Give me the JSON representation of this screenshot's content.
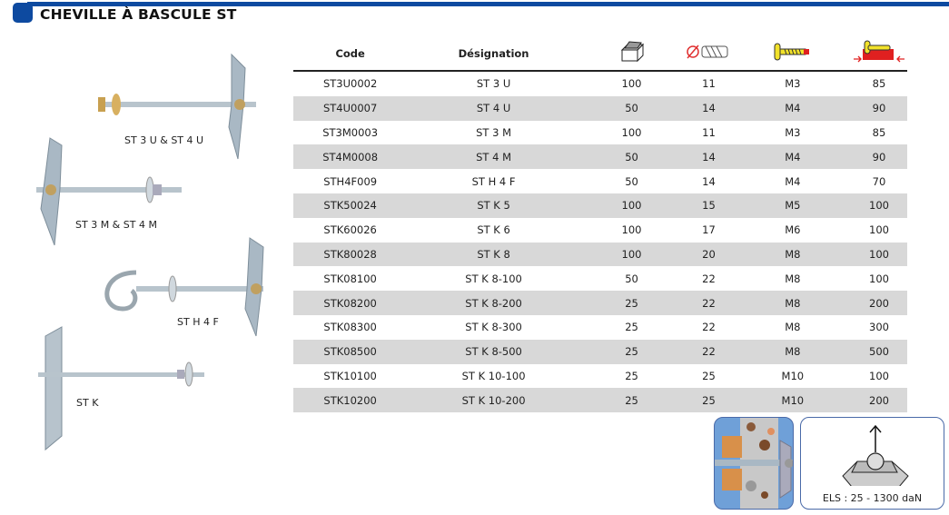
{
  "header": {
    "title": "CHEVILLE À BASCULE ST",
    "accent": "#0d4aa0"
  },
  "table": {
    "columns": [
      {
        "label": "Code"
      },
      {
        "label": "Désignation"
      },
      {
        "icon": "box-quantity-icon"
      },
      {
        "icon": "drill-diameter-icon"
      },
      {
        "icon": "screw-thread-icon"
      },
      {
        "icon": "wall-thickness-icon"
      }
    ],
    "rows": [
      [
        "ST3U0002",
        "ST 3 U",
        "100",
        "11",
        "M3",
        "85"
      ],
      [
        "ST4U0007",
        "ST 4 U",
        "50",
        "14",
        "M4",
        "90"
      ],
      [
        "ST3M0003",
        "ST 3 M",
        "100",
        "11",
        "M3",
        "85"
      ],
      [
        "ST4M0008",
        "ST 4 M",
        "50",
        "14",
        "M4",
        "90"
      ],
      [
        "STH4F009",
        "ST H 4 F",
        "50",
        "14",
        "M4",
        "70"
      ],
      [
        "STK50024",
        "ST K 5",
        "100",
        "15",
        "M5",
        "100"
      ],
      [
        "STK60026",
        "ST K 6",
        "100",
        "17",
        "M6",
        "100"
      ],
      [
        "STK80028",
        "ST K 8",
        "100",
        "20",
        "M8",
        "100"
      ],
      [
        "STK08100",
        "ST K 8-100",
        "50",
        "22",
        "M8",
        "100"
      ],
      [
        "STK08200",
        "ST K 8-200",
        "25",
        "22",
        "M8",
        "200"
      ],
      [
        "STK08300",
        "ST K 8-300",
        "25",
        "22",
        "M8",
        "300"
      ],
      [
        "STK08500",
        "ST K 8-500",
        "25",
        "22",
        "M8",
        "500"
      ],
      [
        "STK10100",
        "ST K 10-100",
        "25",
        "25",
        "M10",
        "100"
      ],
      [
        "STK10200",
        "ST K 10-200",
        "25",
        "25",
        "M10",
        "200"
      ]
    ]
  },
  "products": [
    {
      "caption": "ST 3 U & ST 4 U"
    },
    {
      "caption": "ST 3 M & ST 4 M"
    },
    {
      "caption": "ST H 4 F"
    },
    {
      "caption": "ST K"
    }
  ],
  "load": {
    "text": "ELS : 25 - 1300 daN"
  }
}
